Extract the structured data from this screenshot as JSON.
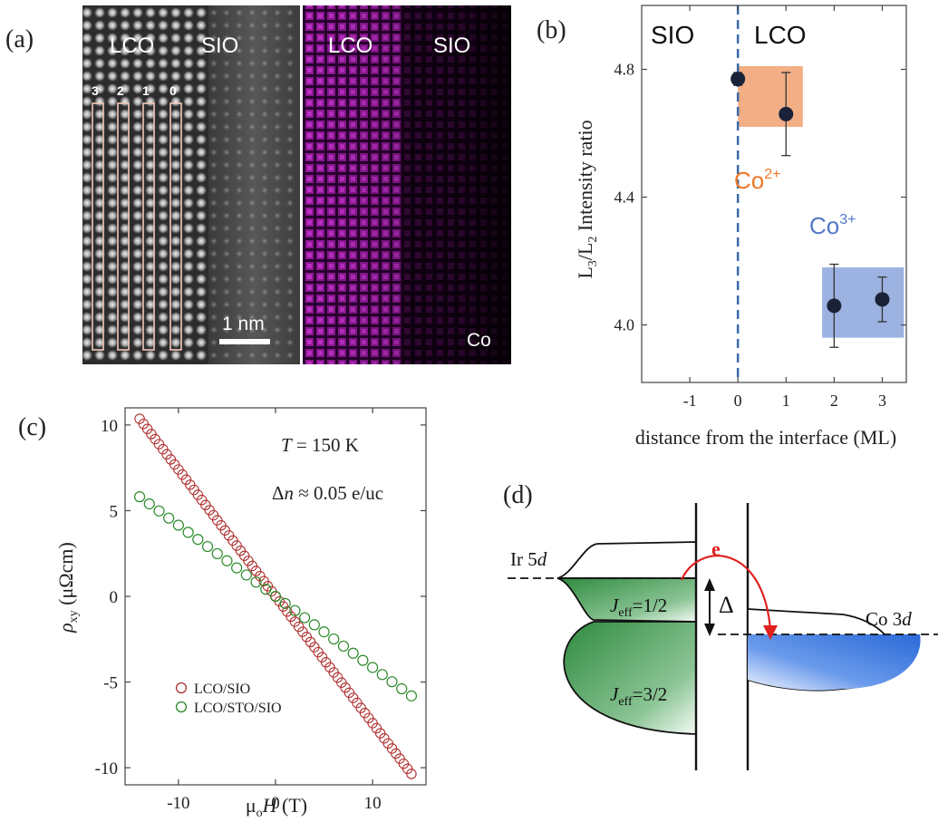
{
  "panel_a": {
    "label": "(a)",
    "haadf": {
      "left_label": "LCO",
      "right_label": "SIO",
      "columns": [
        "3",
        "2",
        "1",
        "0"
      ],
      "scalebar": "1 nm"
    },
    "eels_map": {
      "left_label": "LCO",
      "right_label": "SIO",
      "element": "Co",
      "color": "#d000d0"
    }
  },
  "panel_b": {
    "label": "(b)",
    "region_left": "SIO",
    "region_right": "LCO",
    "ylabel": "L3/L2 Intensity ratio",
    "xlabel": "distance from the interface (ML)",
    "box_co2": {
      "label": "Co2+",
      "color": "#f0a070"
    },
    "box_co3": {
      "label": "Co3+",
      "color": "#8ba6dc"
    },
    "interface_line_color": "#3a6aa8"
  },
  "panel_c": {
    "label": "(c)",
    "ann_temp": "T = 150 K",
    "ann_dn": "Δn ≈ 0.05 e/uc",
    "ylabel": "ρxy (μΩcm)",
    "xlabel": "μoH (T)"
  },
  "panel_d": {
    "label": "(d)",
    "ir_label": "Ir 5d",
    "co_label": "Co 3d",
    "j_half": "Jeff=1/2",
    "j_three_half": "Jeff=3/2",
    "delta": "Δ",
    "electron": "e",
    "ir_fill": "#2e8a3e",
    "co_fill": "#2a6ad8",
    "arrow_color": "#e02020"
  },
  "chart_data": [
    {
      "type": "scatter",
      "panel": "b",
      "xlim": [
        -2,
        3.5
      ],
      "ylim": [
        3.82,
        5.0
      ],
      "xticks": [
        -1,
        0,
        1,
        2,
        3
      ],
      "yticks": [
        4.0,
        4.4,
        4.8
      ],
      "series": [
        {
          "x": [
            0,
            1,
            2,
            3
          ],
          "y": [
            4.77,
            4.66,
            4.06,
            4.08
          ],
          "yerr": [
            0.02,
            0.13,
            0.13,
            0.07
          ]
        }
      ],
      "box_co2": {
        "x": [
          0,
          1.35
        ],
        "y": [
          4.62,
          4.81
        ]
      },
      "box_co3": {
        "x": [
          1.75,
          3.45
        ],
        "y": [
          3.96,
          4.18
        ]
      },
      "interface_x": 0
    },
    {
      "type": "scatter",
      "panel": "c",
      "xlim": [
        -15.5,
        15.5
      ],
      "ylim": [
        -11,
        11
      ],
      "xticks": [
        -10,
        0,
        10
      ],
      "yticks": [
        -10,
        -5,
        0,
        5,
        10
      ],
      "series": [
        {
          "name": "LCO/SIO",
          "color": "#b03030",
          "slope": -0.74,
          "x_range": [
            -14,
            14
          ]
        },
        {
          "name": "LCO/STO/SIO",
          "color": "#2a8a2a",
          "slope": -0.415,
          "x_range": [
            -14,
            14
          ]
        }
      ]
    }
  ]
}
